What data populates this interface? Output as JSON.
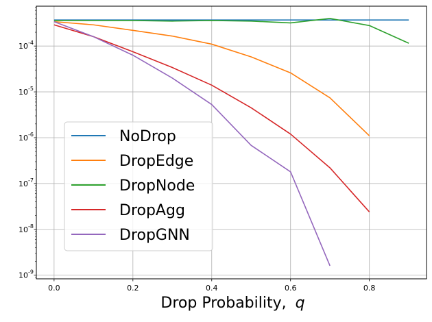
{
  "chart_data": {
    "type": "line",
    "xlabel": "Drop Probability,",
    "xlabel_var": "q",
    "ylabel": "",
    "yscale": "log",
    "xlim": [
      -0.045,
      0.945
    ],
    "ylim_exp": [
      -9.08,
      -3.13
    ],
    "x_ticks": [
      0.0,
      0.2,
      0.4,
      0.6,
      0.8
    ],
    "x_tick_labels": [
      "0.0",
      "0.2",
      "0.4",
      "0.6",
      "0.8"
    ],
    "y_tick_exponents": [
      -9,
      -8,
      -7,
      -6,
      -5,
      -4
    ],
    "y_tick_labels": [
      "-9",
      "-8",
      "-7",
      "-6",
      "-5",
      "-4"
    ],
    "y_tick_base": "10",
    "grid": true,
    "legend_position": "lower-left",
    "series": [
      {
        "name": "NoDrop",
        "color": "#1f77b4",
        "x": [
          0.0,
          0.1,
          0.2,
          0.3,
          0.4,
          0.5,
          0.6,
          0.7,
          0.8,
          0.9
        ],
        "y": [
          0.00037,
          0.00037,
          0.00037,
          0.00037,
          0.00037,
          0.00037,
          0.00037,
          0.00037,
          0.00037,
          0.00037
        ]
      },
      {
        "name": "DropEdge",
        "color": "#ff7f0e",
        "x": [
          0.0,
          0.1,
          0.2,
          0.3,
          0.4,
          0.5,
          0.6,
          0.7,
          0.8
        ],
        "y": [
          0.00034,
          0.00029,
          0.00022,
          0.000165,
          0.00011,
          5.8e-05,
          2.6e-05,
          7.4e-06,
          1.1e-06
        ]
      },
      {
        "name": "DropNode",
        "color": "#2ca02c",
        "x": [
          0.0,
          0.1,
          0.2,
          0.3,
          0.4,
          0.5,
          0.6,
          0.7,
          0.8,
          0.9
        ],
        "y": [
          0.00036,
          0.00036,
          0.00036,
          0.00035,
          0.00036,
          0.00035,
          0.00032,
          0.0004,
          0.00028,
          0.000115
        ]
      },
      {
        "name": "DropAgg",
        "color": "#d62728",
        "x": [
          0.0,
          0.1,
          0.2,
          0.3,
          0.4,
          0.5,
          0.6,
          0.7,
          0.8
        ],
        "y": [
          0.00029,
          0.00016,
          7.5e-05,
          3.4e-05,
          1.4e-05,
          4.5e-06,
          1.2e-06,
          2.2e-07,
          2.4e-08
        ]
      },
      {
        "name": "DropGNN",
        "color": "#9467bd",
        "x": [
          0.0,
          0.1,
          0.2,
          0.3,
          0.4,
          0.5,
          0.6,
          0.7
        ],
        "y": [
          0.00034,
          0.00016,
          6.3e-05,
          2e-05,
          5.3e-06,
          6.8e-07,
          1.8e-07,
          1.6e-09
        ]
      }
    ]
  }
}
